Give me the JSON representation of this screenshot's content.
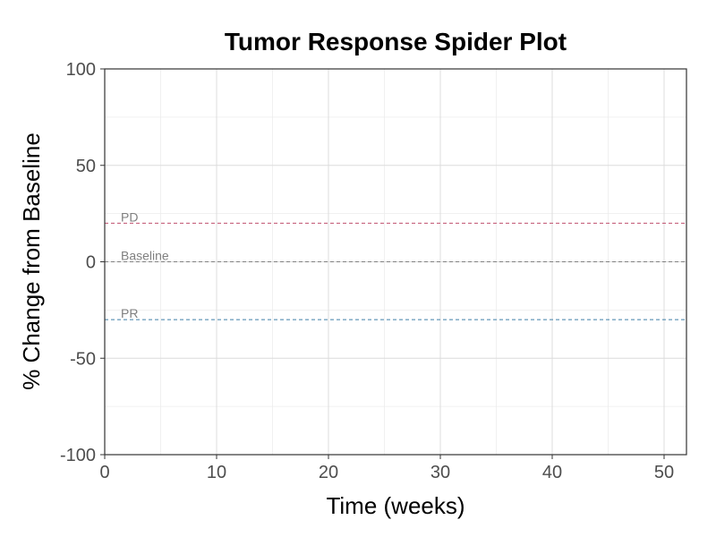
{
  "chart_data": {
    "type": "line",
    "title": "Tumor Response Spider Plot",
    "xlabel": "Time (weeks)",
    "ylabel": "% Change from Baseline",
    "xlim": [
      0,
      52
    ],
    "ylim": [
      -100,
      100
    ],
    "x_ticks": [
      0,
      10,
      20,
      30,
      40,
      50
    ],
    "y_ticks": [
      -100,
      -50,
      0,
      50,
      100
    ],
    "x_minor_grid": [
      5,
      15,
      25,
      35,
      45
    ],
    "y_minor_grid": [
      -75,
      -25,
      25,
      75
    ],
    "grid": true,
    "series": [],
    "reference_lines": [
      {
        "label": "PD",
        "y": 20,
        "color": "#c0506e"
      },
      {
        "label": "Baseline",
        "y": 0,
        "color": "#808080"
      },
      {
        "label": "PR",
        "y": -30,
        "color": "#3e7fa8"
      }
    ]
  },
  "colors": {
    "grid_major": "#dcdcdc",
    "grid_minor": "#ececec",
    "axis": "#333333"
  }
}
